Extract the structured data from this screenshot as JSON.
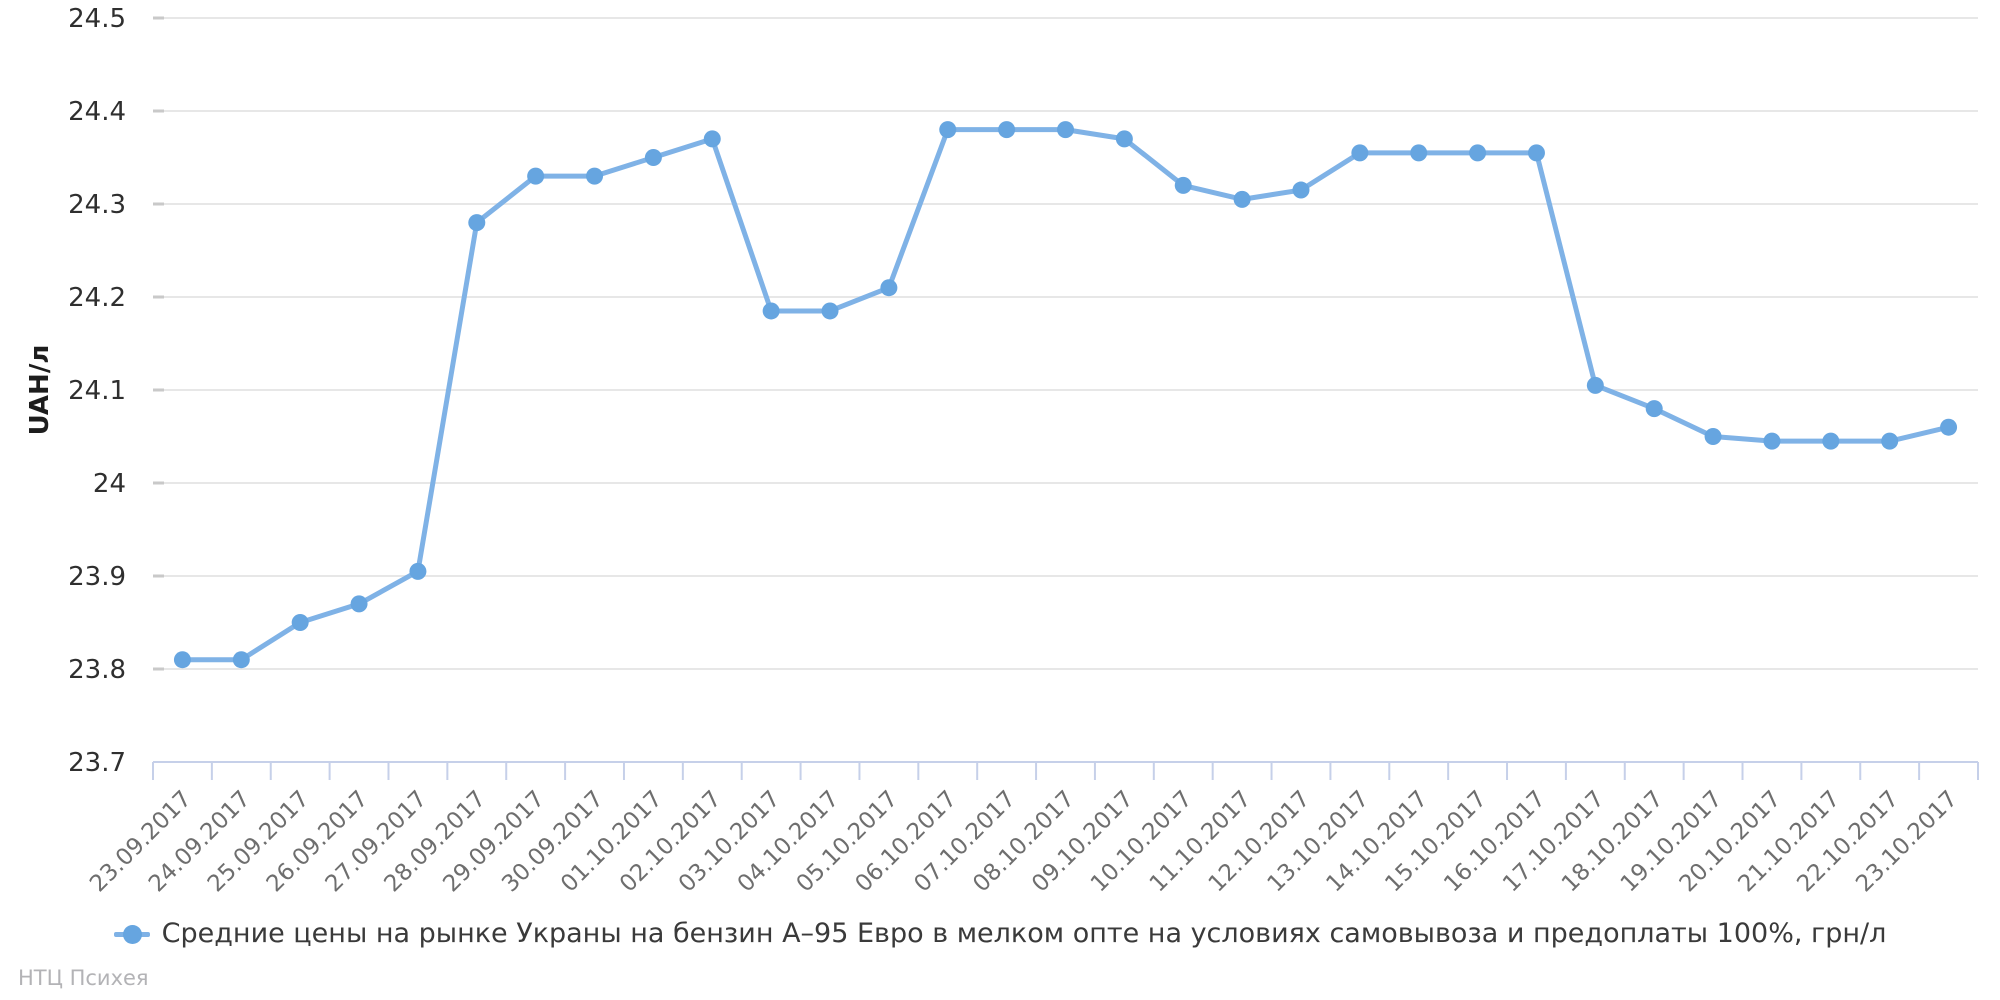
{
  "chart_data": {
    "type": "line",
    "title": "",
    "xlabel": "",
    "ylabel": "UAH/л",
    "ylim": [
      23.7,
      24.5
    ],
    "ytick_step": 0.1,
    "grid": true,
    "legend_position": "bottom",
    "categories": [
      "23.09.2017",
      "24.09.2017",
      "25.09.2017",
      "26.09.2017",
      "27.09.2017",
      "28.09.2017",
      "29.09.2017",
      "30.09.2017",
      "01.10.2017",
      "02.10.2017",
      "03.10.2017",
      "04.10.2017",
      "05.10.2017",
      "06.10.2017",
      "07.10.2017",
      "08.10.2017",
      "09.10.2017",
      "10.10.2017",
      "11.10.2017",
      "12.10.2017",
      "13.10.2017",
      "14.10.2017",
      "15.10.2017",
      "16.10.2017",
      "17.10.2017",
      "18.10.2017",
      "19.10.2017",
      "20.10.2017",
      "21.10.2017",
      "22.10.2017",
      "23.10.2017"
    ],
    "series": [
      {
        "name": "Средние цены на рынке Украны на бензин А–95 Евро в мелком опте на условиях самовывоза и предоплаты 100%, грн/л",
        "values": [
          23.81,
          23.81,
          23.85,
          23.87,
          23.905,
          24.28,
          24.33,
          24.33,
          24.35,
          24.37,
          24.185,
          24.185,
          24.21,
          24.38,
          24.38,
          24.38,
          24.37,
          24.32,
          24.305,
          24.315,
          24.355,
          24.355,
          24.355,
          24.355,
          24.105,
          24.08,
          24.05,
          24.045,
          24.045,
          24.045,
          24.06
        ]
      }
    ],
    "colors": {
      "line": "#7fb2e6",
      "marker": "#66a5e0",
      "grid": "#e7e7e7",
      "grid_tick": "#c9c9c9",
      "axis": "#c6d0e9",
      "y_label": "#2f2f2f",
      "x_label": "#6e6e6e",
      "ylabel_title": "#1d1d1d"
    }
  },
  "footer": {
    "watermark": "НТЦ Психея"
  }
}
